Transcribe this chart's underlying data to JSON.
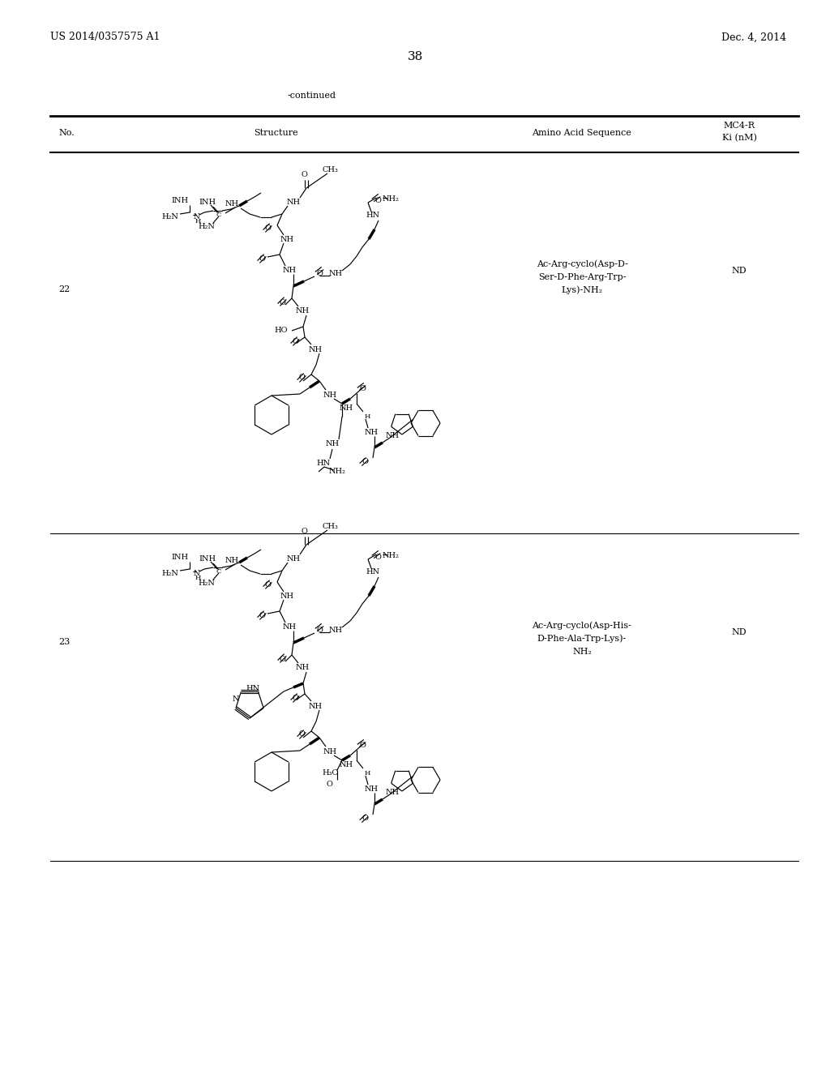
{
  "background_color": "#ffffff",
  "header_left": "US 2014/0357575 A1",
  "header_right": "Dec. 4, 2014",
  "page_number": "38",
  "continued_text": "-continued",
  "col1_label": "No.",
  "col2_label": "Structure",
  "col3_label": "Amino Acid Sequence",
  "col4_l1": "MC4-R",
  "col4_l2": "Ki (nM)",
  "row22_no": "22",
  "row22_seq1": "Ac-Arg-cyclo(Asp-D-",
  "row22_seq2": "Ser-D-Phe-Arg-Trp-",
  "row22_seq3": "Lys)-NH₂",
  "row22_ki": "ND",
  "row23_no": "23",
  "row23_seq1": "Ac-Arg-cyclo(Asp-His-",
  "row23_seq2": "D-Phe-Ala-Trp-Lys)-",
  "row23_seq3": "NH₂",
  "row23_ki": "ND"
}
